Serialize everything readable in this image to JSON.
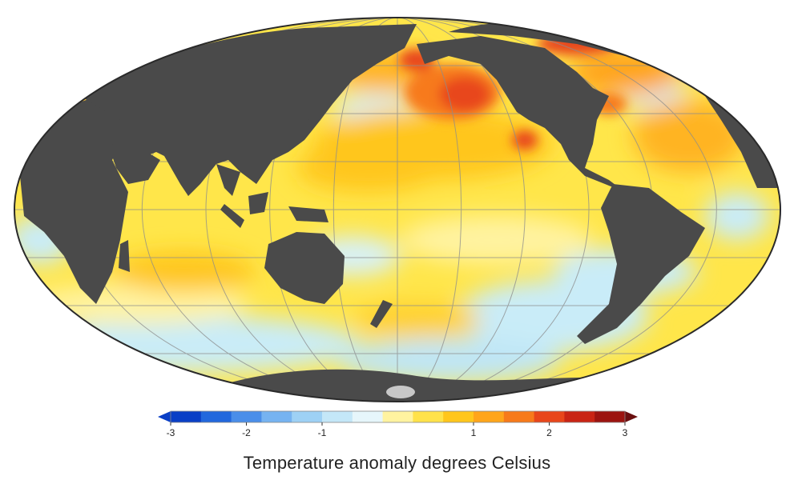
{
  "map": {
    "projection": "Mollweide",
    "graticule": true,
    "land_color": "#4a4a4a",
    "ice_color": "#c8c8c8"
  },
  "legend": {
    "title": "Temperature anomaly degrees Celsius",
    "range": [
      -3,
      3
    ],
    "ticks": [
      {
        "value": -3,
        "label": "-3"
      },
      {
        "value": -2,
        "label": "-2"
      },
      {
        "value": -1,
        "label": "-1"
      },
      {
        "value": 1,
        "label": "1"
      },
      {
        "value": 2,
        "label": "2"
      },
      {
        "value": 3,
        "label": "3"
      }
    ],
    "colors": [
      "#0a3fc6",
      "#2268dd",
      "#4a8ee9",
      "#76b3f1",
      "#9ed1f5",
      "#c4e7f8",
      "#e6f6fb",
      "#fff3a0",
      "#ffe24a",
      "#ffc61c",
      "#ffa51a",
      "#f77a1a",
      "#e8461a",
      "#c92414",
      "#9c1410"
    ],
    "arrow_low_color": "#0a3fc6",
    "arrow_high_color": "#6a0f10"
  }
}
